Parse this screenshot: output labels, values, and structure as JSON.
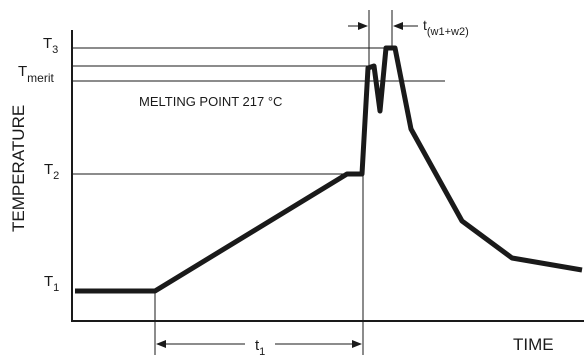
{
  "diagram": {
    "x_axis_label": "TIME",
    "y_axis_label": "TEMPERATURE",
    "y_levels": [
      {
        "name": "T3",
        "base": "T",
        "sub": "3"
      },
      {
        "name": "Tmerit",
        "base": "T",
        "sub": "merit"
      },
      {
        "name": "T2",
        "base": "T",
        "sub": "2"
      },
      {
        "name": "T1",
        "base": "T",
        "sub": "1"
      }
    ],
    "melting_point_label": "MELTING POINT 217 °C",
    "interval_t1": {
      "base": "t",
      "sub": "1"
    },
    "interval_tw": {
      "base": "t",
      "sub": "(w1+w2)"
    },
    "colors": {
      "line": "#1a1a1a",
      "curve": "#1a1a1a",
      "background": "#ffffff"
    }
  }
}
